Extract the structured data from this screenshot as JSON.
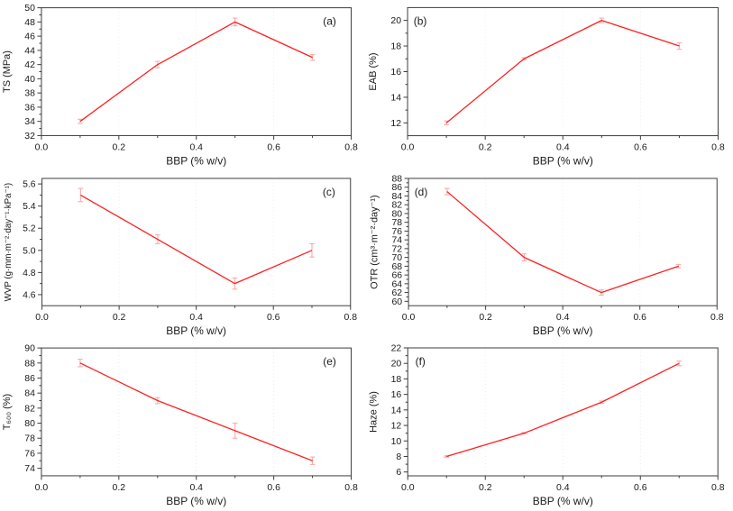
{
  "figure": {
    "description": "Six-panel line chart figure of film properties versus BBP concentration",
    "shared_xlabel": "BBP (% w/v)",
    "palette": {
      "line": "#ff1f1f",
      "error_bar": "#f9b0b0",
      "axis": "#3d3d3d",
      "text": "#1a1a1a",
      "grid": "#ececec",
      "background": "#ffffff"
    }
  },
  "chart_data": [
    {
      "type": "line",
      "panel_label": "(a)",
      "label_side": "right",
      "xlabel": "BBP (% w/v)",
      "ylabel": "TS (MPa)",
      "xlim": [
        0,
        0.8
      ],
      "ylim": [
        32,
        50
      ],
      "xticks": [
        0,
        0.2,
        0.4,
        0.6,
        0.8
      ],
      "xtick_labels": [
        "0.0",
        "0.2",
        "0.4",
        "0.6",
        "0.8"
      ],
      "yticks": [
        32,
        34,
        36,
        38,
        40,
        42,
        44,
        46,
        48,
        50
      ],
      "ytick_labels": [
        "32",
        "34",
        "36",
        "38",
        "40",
        "42",
        "44",
        "46",
        "48",
        "50"
      ],
      "x": [
        0.1,
        0.3,
        0.5,
        0.7
      ],
      "y": [
        34,
        42,
        48,
        43
      ],
      "yerr": [
        0.3,
        0.45,
        0.55,
        0.4
      ],
      "grid": "faint dotted vertical at major x ticks",
      "legend": "none"
    },
    {
      "type": "line",
      "panel_label": "(b)",
      "label_side": "left",
      "xlabel": "BBP (% w/v)",
      "ylabel": "EAB (%)",
      "xlim": [
        0,
        0.8
      ],
      "ylim": [
        11,
        21
      ],
      "xticks": [
        0,
        0.2,
        0.4,
        0.6,
        0.8
      ],
      "xtick_labels": [
        "0.0",
        "0.2",
        "0.4",
        "0.6",
        "0.8"
      ],
      "yticks": [
        12,
        14,
        16,
        18,
        20
      ],
      "ytick_labels": [
        "12",
        "14",
        "16",
        "18",
        "20"
      ],
      "x": [
        0.1,
        0.3,
        0.5,
        0.7
      ],
      "y": [
        12,
        17,
        20,
        18
      ],
      "yerr": [
        0.15,
        0.08,
        0.18,
        0.25
      ],
      "grid": "faint dotted vertical at major x ticks",
      "legend": "none"
    },
    {
      "type": "line",
      "panel_label": "(c)",
      "label_side": "right",
      "xlabel": "BBP (% w/v)",
      "ylabel": "WVP (g·mm·m⁻²·day⁻¹·kPa⁻¹)",
      "xlim": [
        0,
        0.8
      ],
      "ylim": [
        4.5,
        5.65
      ],
      "xticks": [
        0,
        0.2,
        0.4,
        0.6,
        0.8
      ],
      "xtick_labels": [
        "0.0",
        "0.2",
        "0.4",
        "0.6",
        "0.8"
      ],
      "yticks": [
        4.6,
        4.8,
        5.0,
        5.2,
        5.4,
        5.6
      ],
      "ytick_labels": [
        "4.6",
        "4.8",
        "5.0",
        "5.2",
        "5.4",
        "5.6"
      ],
      "x": [
        0.1,
        0.3,
        0.5,
        0.7
      ],
      "y": [
        5.5,
        5.1,
        4.7,
        5.0
      ],
      "yerr": [
        0.06,
        0.04,
        0.05,
        0.06
      ],
      "grid": "faint dotted vertical at major x ticks",
      "legend": "none"
    },
    {
      "type": "line",
      "panel_label": "(d)",
      "label_side": "left",
      "xlabel": "BBP (% w/v)",
      "ylabel": "OTR (cm³·m⁻²·day⁻¹)",
      "xlim": [
        0,
        0.8
      ],
      "ylim": [
        59,
        88
      ],
      "xticks": [
        0,
        0.2,
        0.4,
        0.6,
        0.8
      ],
      "xtick_labels": [
        "0.0",
        "0.2",
        "0.4",
        "0.6",
        "0.8"
      ],
      "yticks": [
        60,
        62,
        64,
        66,
        68,
        70,
        72,
        74,
        76,
        78,
        80,
        82,
        84,
        86,
        88
      ],
      "ytick_labels": [
        "60",
        "62",
        "64",
        "66",
        "68",
        "70",
        "72",
        "74",
        "76",
        "78",
        "80",
        "82",
        "84",
        "86",
        "88"
      ],
      "x": [
        0.1,
        0.3,
        0.5,
        0.7
      ],
      "y": [
        85,
        70,
        62,
        68
      ],
      "yerr": [
        0.7,
        0.8,
        0.6,
        0.4
      ],
      "grid": "faint dotted vertical at major x ticks",
      "legend": "none"
    },
    {
      "type": "line",
      "panel_label": "(e)",
      "label_side": "right",
      "xlabel": "BBP (% w/v)",
      "ylabel": "T₆₀₀ (%)",
      "xlim": [
        0,
        0.8
      ],
      "ylim": [
        73,
        90
      ],
      "xticks": [
        0,
        0.2,
        0.4,
        0.6,
        0.8
      ],
      "xtick_labels": [
        "0.0",
        "0.2",
        "0.4",
        "0.6",
        "0.8"
      ],
      "yticks": [
        74,
        76,
        78,
        80,
        82,
        84,
        86,
        88,
        90
      ],
      "ytick_labels": [
        "74",
        "76",
        "78",
        "80",
        "82",
        "84",
        "86",
        "88",
        "90"
      ],
      "x": [
        0.1,
        0.3,
        0.5,
        0.7
      ],
      "y": [
        88,
        83,
        79,
        75
      ],
      "yerr": [
        0.5,
        0.4,
        1.0,
        0.5
      ],
      "grid": "faint dotted vertical at major x ticks",
      "legend": "none"
    },
    {
      "type": "line",
      "panel_label": "(f)",
      "label_side": "left",
      "xlabel": "BBP (% w/v)",
      "ylabel": "Haze (%)",
      "xlim": [
        0,
        0.8
      ],
      "ylim": [
        5.5,
        22
      ],
      "xticks": [
        0,
        0.2,
        0.4,
        0.6,
        0.8
      ],
      "xtick_labels": [
        "0.0",
        "0.2",
        "0.4",
        "0.6",
        "0.8"
      ],
      "yticks": [
        6,
        8,
        10,
        12,
        14,
        16,
        18,
        20,
        22
      ],
      "ytick_labels": [
        "6",
        "8",
        "10",
        "12",
        "14",
        "16",
        "18",
        "20",
        "22"
      ],
      "x": [
        0.1,
        0.3,
        0.5,
        0.7
      ],
      "y": [
        8,
        11,
        15,
        20
      ],
      "yerr": [
        0.08,
        0.08,
        0.15,
        0.3
      ],
      "grid": "faint dotted vertical at major x ticks",
      "legend": "none"
    }
  ]
}
